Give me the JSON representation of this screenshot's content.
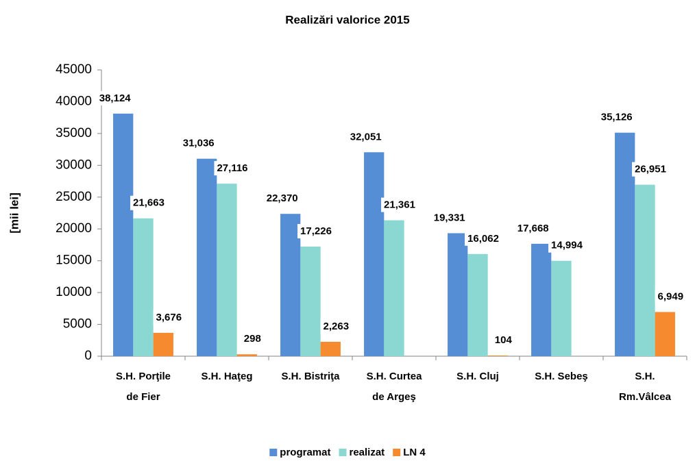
{
  "chart_data": {
    "type": "bar",
    "title": "Realizări valorice 2015",
    "y_label": "[mii lei]",
    "categories": [
      [
        "S.H. Porţile",
        "de Fier"
      ],
      [
        "S.H. Haţeg"
      ],
      [
        "S.H. Bistriţa"
      ],
      [
        "S.H. Curtea",
        "de Argeş"
      ],
      [
        "S.H. Cluj"
      ],
      [
        "S.H. Sebeş"
      ],
      [
        "S.H.",
        "Rm.Vâlcea"
      ]
    ],
    "series": [
      {
        "name": "programat",
        "color": "#558ed5",
        "values": [
          38124,
          31036,
          22370,
          32051,
          19331,
          17668,
          35126
        ],
        "value_labels": [
          "38,124",
          "31,036",
          "22,370",
          "32,051",
          "19,331",
          "17,668",
          "35,126"
        ]
      },
      {
        "name": "realizat",
        "color": "#8bd7d2",
        "values": [
          21663,
          27116,
          17226,
          21361,
          16062,
          14994,
          26951
        ],
        "value_labels": [
          "21,663",
          "27,116",
          "17,226",
          "21,361",
          "16,062",
          "14,994",
          "26,951"
        ]
      },
      {
        "name": "LN 4",
        "color": "#f58a2e",
        "values": [
          3676,
          298,
          2263,
          null,
          104,
          null,
          6949
        ],
        "value_labels": [
          "3,676",
          "298",
          "2,263",
          null,
          "104",
          null,
          "6,949"
        ]
      }
    ],
    "ylim": [
      0,
      45000
    ],
    "yticks": [
      0,
      5000,
      10000,
      15000,
      20000,
      25000,
      30000,
      35000,
      40000,
      45000
    ],
    "legend": "bottom"
  }
}
